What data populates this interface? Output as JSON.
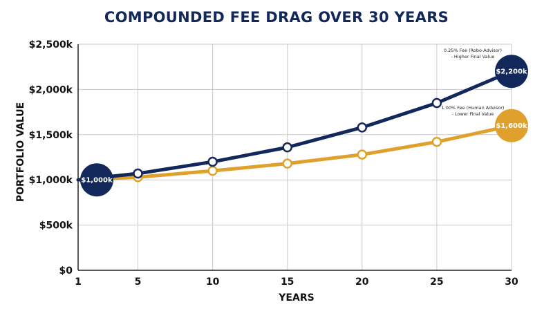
{
  "chart_data": {
    "type": "line",
    "title": "COMPOUNDED FEE DRAG OVER 30 YEARS",
    "xlabel": "YEARS",
    "ylabel": "PORTFOLIO VALUE",
    "x_ticks": [
      1,
      5,
      10,
      15,
      20,
      25,
      30
    ],
    "x_tick_labels": [
      "1",
      "5",
      "10",
      "15",
      "20",
      "25",
      "30"
    ],
    "y_ticks": [
      0,
      500,
      1000,
      1500,
      2000,
      2500
    ],
    "y_tick_labels": [
      "$0",
      "$500k",
      "$1,000k",
      "$1,500k",
      "$2,000k",
      "$2,500k"
    ],
    "xlim": [
      1,
      30
    ],
    "ylim": [
      0,
      2500
    ],
    "grid": true,
    "series": [
      {
        "name": "0.25% Fee (Robo-Advisor) - Higher Final Value",
        "color": "#13285a",
        "x": [
          1,
          5,
          10,
          15,
          20,
          25,
          30
        ],
        "values": [
          1000,
          1070,
          1200,
          1360,
          1580,
          1850,
          2200
        ]
      },
      {
        "name": "1.00% Fee (Human Advisor) - Lower Final Value",
        "color": "#e0a12c",
        "x": [
          1,
          5,
          10,
          15,
          20,
          25,
          30
        ],
        "values": [
          1000,
          1030,
          1100,
          1180,
          1280,
          1420,
          1600
        ]
      }
    ],
    "annotations": [
      {
        "series": 0,
        "lines": [
          "0.25% Fee (Robo-Advisor)",
          "- Higher Final Value"
        ]
      },
      {
        "series": 1,
        "lines": [
          "1.00% Fee (Human Advisor)",
          "- Lower Final Value"
        ]
      }
    ],
    "bubbles": [
      {
        "label": "$1,000k",
        "x": 1,
        "y": 1000,
        "color": "#13285a"
      },
      {
        "label": "$2,200k",
        "x": 30,
        "y": 2200,
        "color": "#13285a"
      },
      {
        "label": "$1,600k",
        "x": 30,
        "y": 1600,
        "color": "#e0a12c"
      }
    ]
  }
}
